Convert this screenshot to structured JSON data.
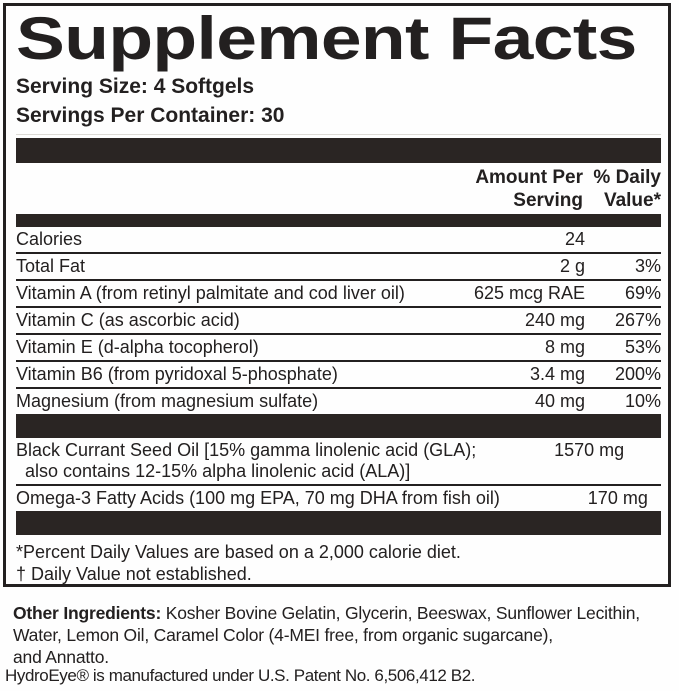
{
  "label": {
    "title": "Supplement Facts",
    "serving_size": "Serving Size: 4 Softgels",
    "servings_per_container": "Servings Per Container: 30",
    "header": {
      "amount_line1": "Amount Per",
      "amount_line2": "Serving",
      "dv_line1": "% Daily",
      "dv_line2": "Value*"
    },
    "rows": [
      {
        "name": "Calories",
        "amount": "24",
        "dv": ""
      },
      {
        "name": "Total Fat",
        "amount": "2 g",
        "dv": "3%"
      },
      {
        "name": "Vitamin A (from retinyl palmitate and cod liver oil)",
        "amount": "625 mcg RAE",
        "dv": "69%"
      },
      {
        "name": "Vitamin C (as ascorbic acid)",
        "amount": "240 mg",
        "dv": "267%"
      },
      {
        "name": "Vitamin E (d-alpha tocopherol)",
        "amount": "8 mg",
        "dv": "53%"
      },
      {
        "name": "Vitamin B6 (from pyridoxal 5-phosphate)",
        "amount": "3.4 mg",
        "dv": "200%"
      },
      {
        "name": "Magnesium (from magnesium sulfate)",
        "amount": "40 mg",
        "dv": "10%"
      }
    ],
    "oil_rows": [
      {
        "name": "Black Currant Seed Oil [15% gamma linolenic acid (GLA);",
        "name2": "also contains 12-15% alpha linolenic acid (ALA)]",
        "amount": "1570 mg",
        "dv": "†"
      },
      {
        "name": "Omega-3 Fatty Acids (100 mg EPA, 70 mg DHA from fish oil)",
        "name2": "",
        "amount": "170 mg",
        "dv": "†"
      }
    ],
    "footnotes": [
      "*Percent Daily Values are based on a 2,000 calorie diet.",
      "† Daily Value not established."
    ]
  },
  "below": {
    "other_ingredients_label": "Other Ingredients:",
    "other_ingredients_line1_rest": " Kosher Bovine Gelatin, Glycerin, Beeswax, Sunflower Lecithin,",
    "other_ingredients_line2": "Water, Lemon Oil, Caramel Color (4-MEI free, from organic sugarcane),",
    "other_ingredients_line3": "and Annatto.",
    "patent": "HydroEye® is manufactured under U.S. Patent No. 6,506,412 B2."
  },
  "colors": {
    "ink": "#232020",
    "bar": "#2a2523",
    "background": "#fefefe"
  }
}
